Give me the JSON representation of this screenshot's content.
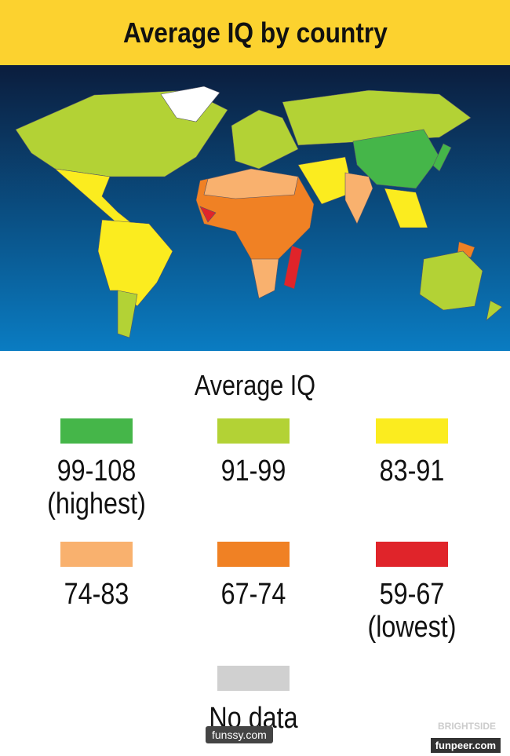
{
  "header": {
    "title": "Average IQ by country"
  },
  "legend": {
    "title": "Average IQ",
    "items": [
      {
        "range": "99-108",
        "note": "(highest)",
        "color": "#45b649"
      },
      {
        "range": "91-99",
        "color": "#b3d235"
      },
      {
        "range": "83-91",
        "color": "#fbec1f"
      },
      {
        "range": "74-83",
        "color": "#f9b16e"
      },
      {
        "range": "67-74",
        "color": "#f08124"
      },
      {
        "range": "59-67",
        "note": "(lowest)",
        "color": "#e0242a"
      },
      {
        "range": "No data",
        "color": "#d0d0d0"
      }
    ]
  },
  "watermarks": {
    "left": "funssy.com",
    "right": "funpeer.com",
    "faint": "BRIGHTSIDE"
  }
}
